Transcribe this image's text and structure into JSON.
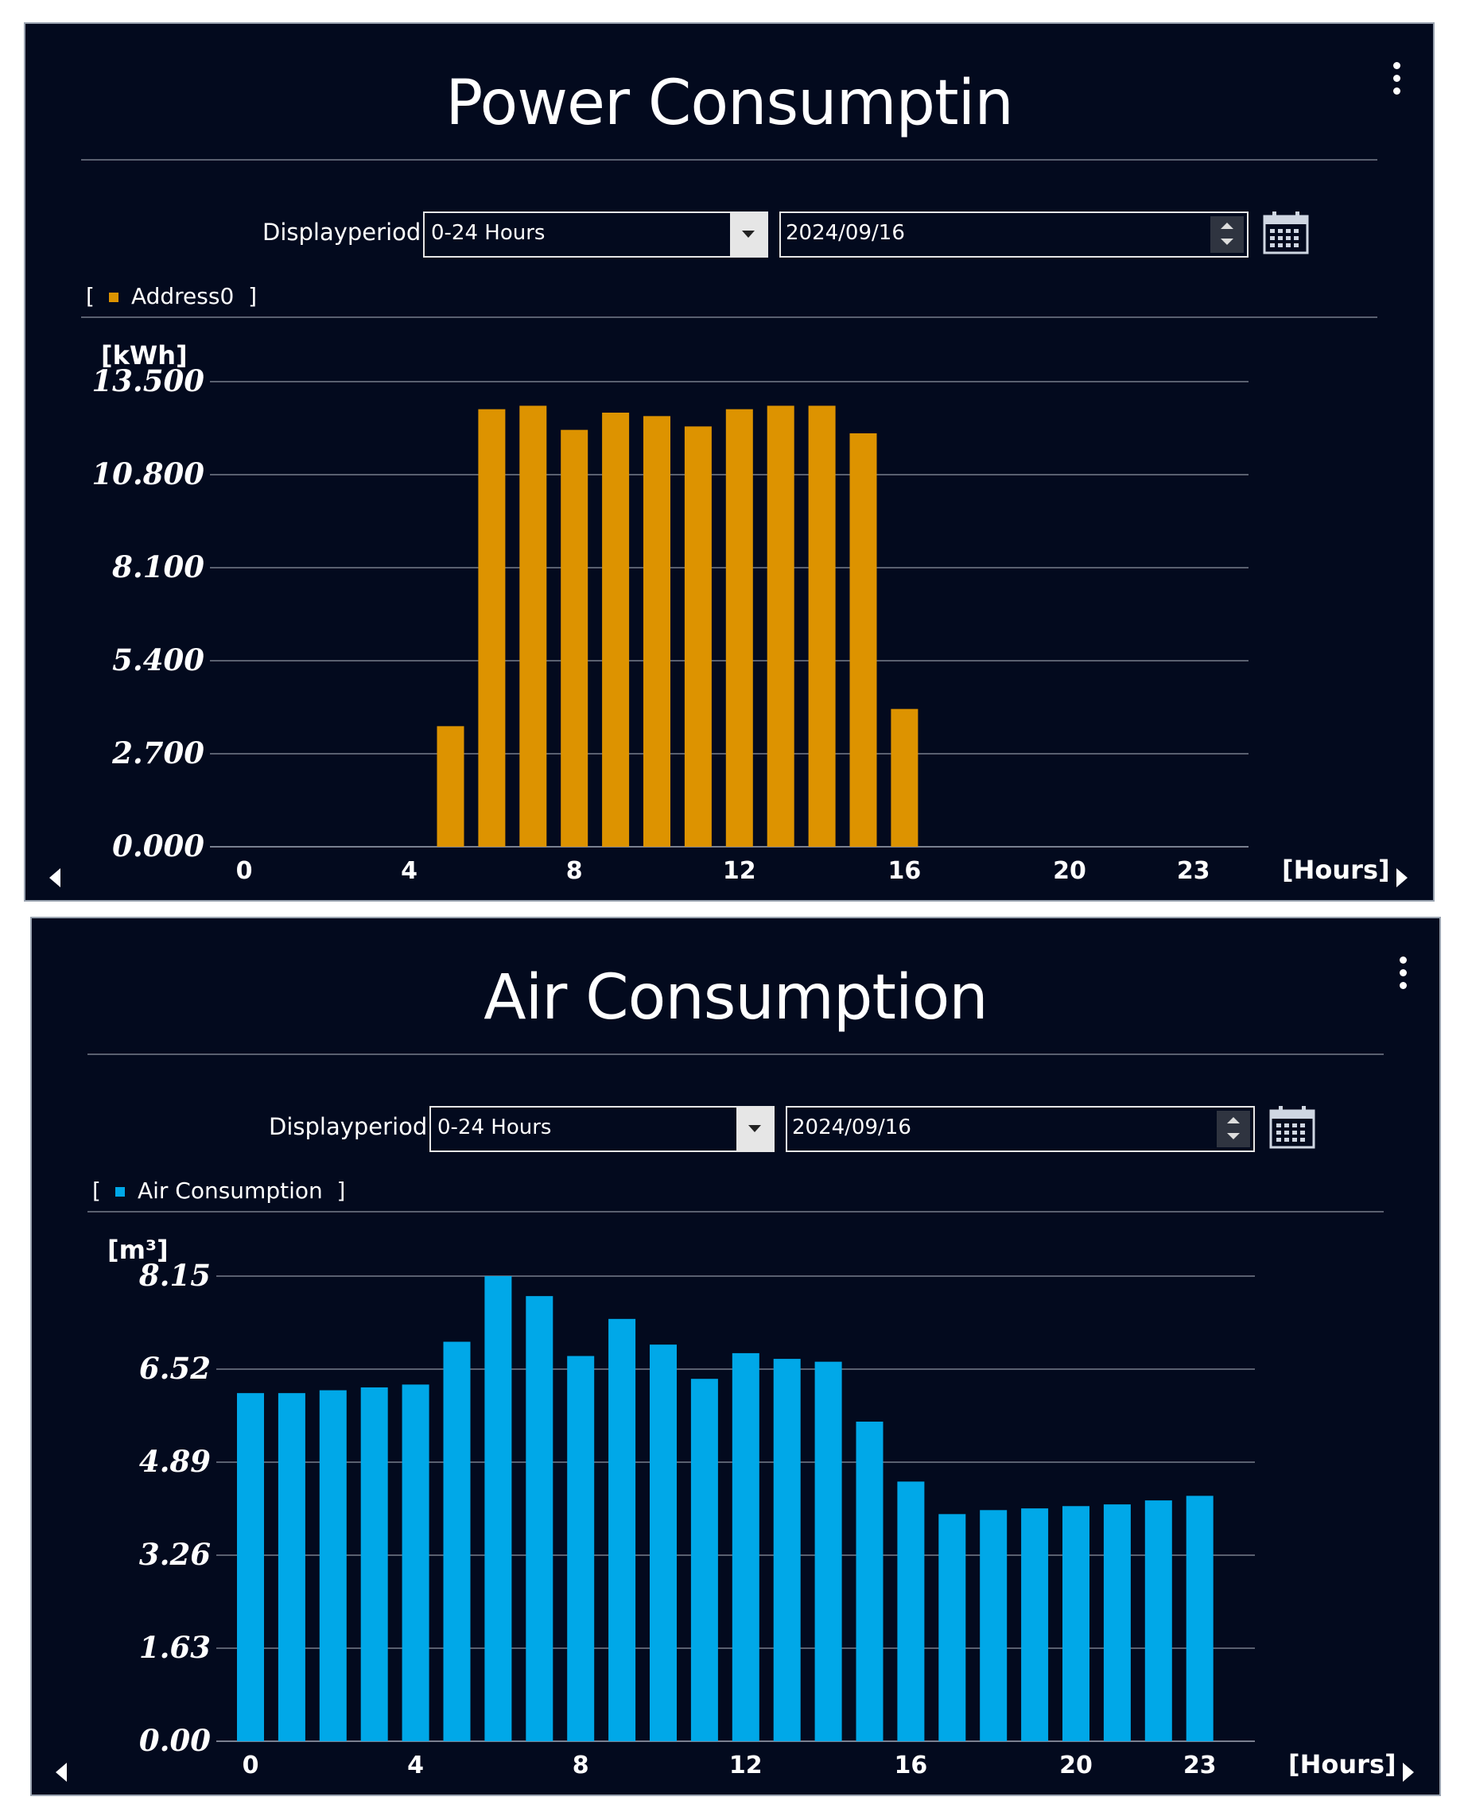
{
  "charts": [
    {
      "title": "Power Consumptin",
      "period_label": "Displayperiod",
      "period_value": "0-24 Hours",
      "date_value": "2024/09/16",
      "legend_label": "Address0",
      "legend_color": "#dd9300",
      "unit": "[kWh]",
      "x_unit": "[Hours]"
    },
    {
      "title": "Air Consumption",
      "period_label": "Displayperiod",
      "period_value": "0-24 Hours",
      "date_value": "2024/09/16",
      "legend_label": "Air Consumption",
      "legend_color": "#00a8e8",
      "unit": "[m³]",
      "x_unit": "[Hours]"
    }
  ],
  "chart_data": [
    {
      "type": "bar",
      "title": "Power Consumptin",
      "series": [
        {
          "name": "Address0",
          "color": "#dd9300",
          "values": [
            0,
            0,
            0,
            0,
            0,
            3.5,
            12.7,
            12.8,
            12.1,
            12.6,
            12.5,
            12.2,
            12.7,
            12.8,
            12.8,
            12.0,
            4.0,
            0,
            0,
            0,
            0,
            0,
            0,
            0
          ]
        }
      ],
      "categories": [
        0,
        1,
        2,
        3,
        4,
        5,
        6,
        7,
        8,
        9,
        10,
        11,
        12,
        13,
        14,
        15,
        16,
        17,
        18,
        19,
        20,
        21,
        22,
        23
      ],
      "x_ticks": [
        "0",
        "4",
        "8",
        "12",
        "16",
        "20",
        "23"
      ],
      "y_ticks": [
        "0.000",
        "2.700",
        "5.400",
        "8.100",
        "10.800",
        "13.500"
      ],
      "ylim": [
        0,
        13.5
      ],
      "ylabel": "[kWh]",
      "xlabel": "[Hours]",
      "grid": true
    },
    {
      "type": "bar",
      "title": "Air Consumption",
      "series": [
        {
          "name": "Air Consumption",
          "color": "#00a8e8",
          "values": [
            6.1,
            6.1,
            6.15,
            6.2,
            6.25,
            7.0,
            8.15,
            7.8,
            6.75,
            7.4,
            6.95,
            6.35,
            6.8,
            6.7,
            6.65,
            5.6,
            4.55,
            3.98,
            4.05,
            4.08,
            4.12,
            4.15,
            4.22,
            4.3
          ]
        }
      ],
      "categories": [
        0,
        1,
        2,
        3,
        4,
        5,
        6,
        7,
        8,
        9,
        10,
        11,
        12,
        13,
        14,
        15,
        16,
        17,
        18,
        19,
        20,
        21,
        22,
        23
      ],
      "x_ticks": [
        "0",
        "4",
        "8",
        "12",
        "16",
        "20",
        "23"
      ],
      "y_ticks": [
        "0.00",
        "1.63",
        "3.26",
        "4.89",
        "6.52",
        "8.15"
      ],
      "ylim": [
        0,
        8.15
      ],
      "ylabel": "[m³]",
      "xlabel": "[Hours]",
      "grid": true
    }
  ]
}
